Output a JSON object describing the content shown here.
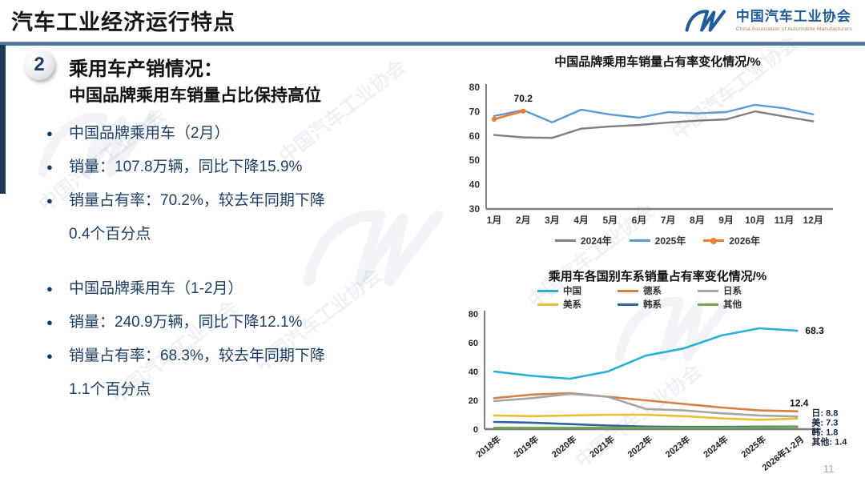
{
  "page": {
    "number": "11"
  },
  "header": {
    "title": "汽车工业经济运行特点",
    "logo": {
      "name_cn": "中国汽车工业协会",
      "name_en": "China Association of Automobile Manufacturers"
    }
  },
  "section": {
    "index": "2",
    "heading": "乘用车产销情况：",
    "subheading": "中国品牌乘用车销量占比保持高位",
    "bullets_group1": [
      "中国品牌乘用车（2月）",
      "销量：107.8万辆，同比下降15.9%",
      "销量占有率：70.2%，较去年同期下降\n0.4个百分点"
    ],
    "bullets_group2": [
      "中国品牌乘用车（1-2月）",
      "销量：240.9万辆，同比下降12.1%",
      "销量占有率：68.3%，较去年同期下降\n1.1个百分点"
    ]
  },
  "watermark": {
    "text": "中国汽车工业协会"
  },
  "chart_data": [
    {
      "type": "line",
      "title": "中国品牌乘用车销量占有率变化情况/%",
      "categories": [
        "1月",
        "2月",
        "3月",
        "4月",
        "5月",
        "6月",
        "7月",
        "8月",
        "9月",
        "10月",
        "11月",
        "12月"
      ],
      "ylim": [
        30,
        80
      ],
      "yticks": [
        30,
        40,
        50,
        60,
        70,
        80
      ],
      "grid": false,
      "legend_position": "bottom",
      "series": [
        {
          "name": "2024年",
          "color": "#7f7f7f",
          "values": [
            60.4,
            59.4,
            59.2,
            63.0,
            63.9,
            64.5,
            65.5,
            66.3,
            66.8,
            70.1,
            68.0,
            66.0
          ]
        },
        {
          "name": "2025年",
          "color": "#5b9bd5",
          "values": [
            68.2,
            70.6,
            65.6,
            70.8,
            68.8,
            67.5,
            69.8,
            69.3,
            69.8,
            72.8,
            71.4,
            68.9
          ]
        },
        {
          "name": "2026年",
          "color": "#ed7d31",
          "marker": true,
          "values": [
            66.9,
            70.2
          ]
        }
      ],
      "annotations": [
        {
          "series": "2026年",
          "index": 1,
          "text": "70.2"
        }
      ]
    },
    {
      "type": "line",
      "title": "乘用车各国别车系销量占有率变化情况/%",
      "categories": [
        "2018年",
        "2019年",
        "2020年",
        "2021年",
        "2022年",
        "2023年",
        "2024年",
        "2025年",
        "2026年1-2月"
      ],
      "ylim": [
        0,
        80
      ],
      "yticks": [
        0,
        20,
        40,
        60,
        80
      ],
      "grid": false,
      "legend_position": "top",
      "series": [
        {
          "name": "中国",
          "color": "#2ab0d6",
          "values": [
            40,
            37,
            35,
            40,
            51,
            56,
            65,
            70,
            68.3
          ]
        },
        {
          "name": "德系",
          "color": "#d57f45",
          "values": [
            21.5,
            24,
            25,
            22.5,
            20,
            17.5,
            15,
            13,
            12.4
          ]
        },
        {
          "name": "日系",
          "color": "#a6a6a6",
          "values": [
            19.5,
            21.5,
            24.5,
            22.5,
            14,
            13,
            11,
            9.5,
            8.8
          ]
        },
        {
          "name": "美系",
          "color": "#e7bf33",
          "values": [
            9.5,
            9,
            9.5,
            10,
            10,
            9,
            7.5,
            6.5,
            7.3
          ]
        },
        {
          "name": "韩系",
          "color": "#33609f",
          "values": [
            5,
            4.5,
            3.5,
            2.5,
            1.8,
            1.6,
            1.6,
            1.7,
            1.8
          ]
        },
        {
          "name": "其他",
          "color": "#6faa4e",
          "values": [
            1,
            1,
            1,
            1,
            1,
            1,
            1,
            1.2,
            1.4
          ]
        }
      ],
      "annotations": [
        {
          "series": "中国",
          "text": "68.3"
        },
        {
          "series": "德系",
          "text": "12.4"
        },
        {
          "series": "日系",
          "text": "日: 8.8"
        },
        {
          "series": "美系",
          "text": "美: 7.3"
        },
        {
          "series": "韩系",
          "text": "韩: 1.8"
        },
        {
          "series": "其他",
          "text": "其他: 1.4"
        }
      ]
    }
  ]
}
